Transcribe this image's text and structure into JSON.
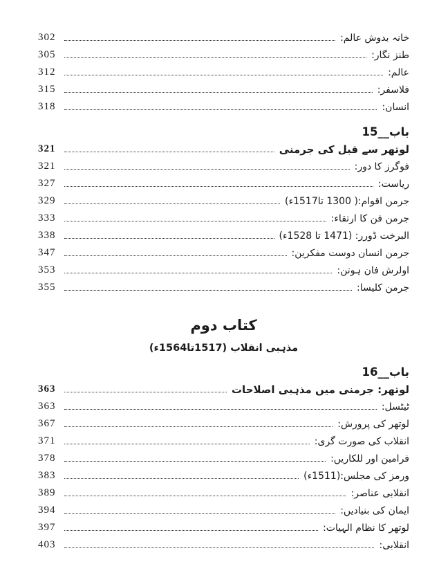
{
  "colors": {
    "background": "#ffffff",
    "ink": "#1b1b1b"
  },
  "toc": {
    "preceding_rows": [
      {
        "label": "خانہ بدوش عالم:",
        "page": "302"
      },
      {
        "label": "طنز نگار:",
        "page": "305"
      },
      {
        "label": "عالم:",
        "page": "312"
      },
      {
        "label": "فلاسفر:",
        "page": "315"
      },
      {
        "label": "انسان:",
        "page": "318"
      }
    ],
    "chapter15": {
      "heading": "باب__15",
      "rows": [
        {
          "label": "لوتھر سے قبل کی جرمنی",
          "page": "321",
          "bold": true
        },
        {
          "label": "فوگرز کا دور:",
          "page": "321"
        },
        {
          "label": "ریاست:",
          "page": "327"
        },
        {
          "label": "جرمن اقوام:( 1300 تا1517ء)",
          "page": "329"
        },
        {
          "label": "جرمن فن کا ارتقاء:",
          "page": "333"
        },
        {
          "label": "البرخت ڈورر: (1471 تا 1528ء)",
          "page": "338"
        },
        {
          "label": "جرمن انسان دوست مفکرین:",
          "page": "347"
        },
        {
          "label": "اولرش فان ہوتن:",
          "page": "353"
        },
        {
          "label": "جرمن کلیسا:",
          "page": "355"
        }
      ]
    },
    "book2": {
      "title": "کتاب دوم",
      "subtitle": "مذہبی انقلاب (1517تا1564ء)"
    },
    "chapter16": {
      "heading": "باب__16",
      "rows": [
        {
          "label": "لوتھر: جرمنی میں مذہبی اصلاحات",
          "page": "363",
          "bold": true
        },
        {
          "label": "ٹیٹسل:",
          "page": "363"
        },
        {
          "label": "لوتھر کی پرورش:",
          "page": "367"
        },
        {
          "label": "انقلاب کی صورت گری:",
          "page": "371"
        },
        {
          "label": "فرامین اور للکاریں:",
          "page": "378"
        },
        {
          "label": "ورمز کی مجلس:(1511ء)",
          "page": "383"
        },
        {
          "label": "انقلابی عناصر:",
          "page": "389"
        },
        {
          "label": "ایمان کی بنیادیں:",
          "page": "394"
        },
        {
          "label": "لوتھر کا نظام الہیات:",
          "page": "397"
        },
        {
          "label": "انقلابی:",
          "page": "403"
        }
      ]
    }
  }
}
